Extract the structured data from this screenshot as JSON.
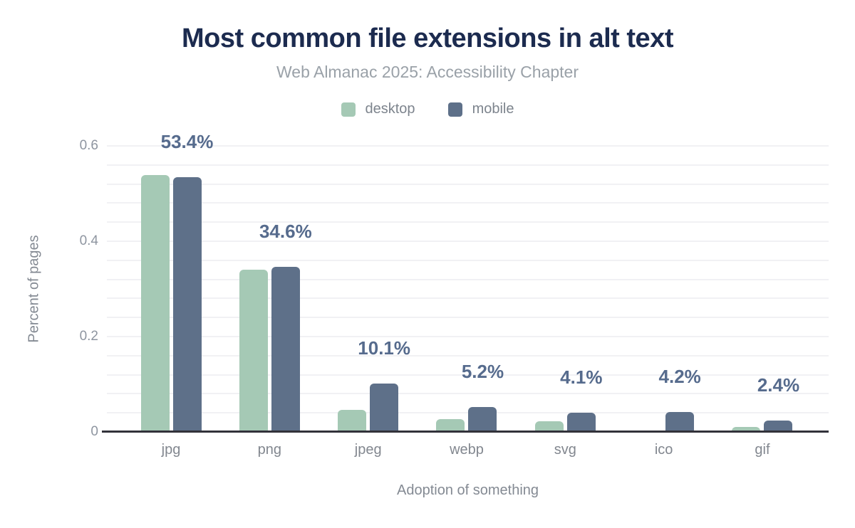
{
  "chart_data": {
    "type": "bar",
    "title": "Most common file extensions in alt text",
    "subtitle": "Web Almanac 2025: Accessibility Chapter",
    "xlabel": "Adoption of something",
    "ylabel": "Percent of pages",
    "categories": [
      "jpg",
      "png",
      "jpeg",
      "webp",
      "svg",
      "ico",
      "gif"
    ],
    "series": [
      {
        "name": "desktop",
        "color": "#a5c9b5",
        "values": [
          0.539,
          0.341,
          0.047,
          0.027,
          0.023,
          0,
          0.01
        ]
      },
      {
        "name": "mobile",
        "color": "#5e7089",
        "values": [
          0.534,
          0.346,
          0.101,
          0.052,
          0.041,
          0.042,
          0.024
        ]
      }
    ],
    "bar_labels": [
      "53.4%",
      "34.6%",
      "10.1%",
      "5.2%",
      "4.1%",
      "4.2%",
      "2.4%"
    ],
    "ylim": [
      0,
      0.6
    ],
    "yticks": [
      0,
      0.2,
      0.4,
      0.6
    ],
    "ytick_labels": [
      "0",
      "0.2",
      "0.4",
      "0.6"
    ],
    "grid_minor_step": 0.04,
    "grid": "horizontal",
    "legend_position": "top"
  },
  "colors": {
    "background": "#ffffff",
    "title_text": "#1c2b4f",
    "subtitle_text": "#9aa1a8",
    "data_label_text": "#566b8d",
    "axis_text": "#848a93",
    "tick_text": "#8e95a0",
    "gridline": "#f1f1f4",
    "axis_line": "#32323a"
  }
}
